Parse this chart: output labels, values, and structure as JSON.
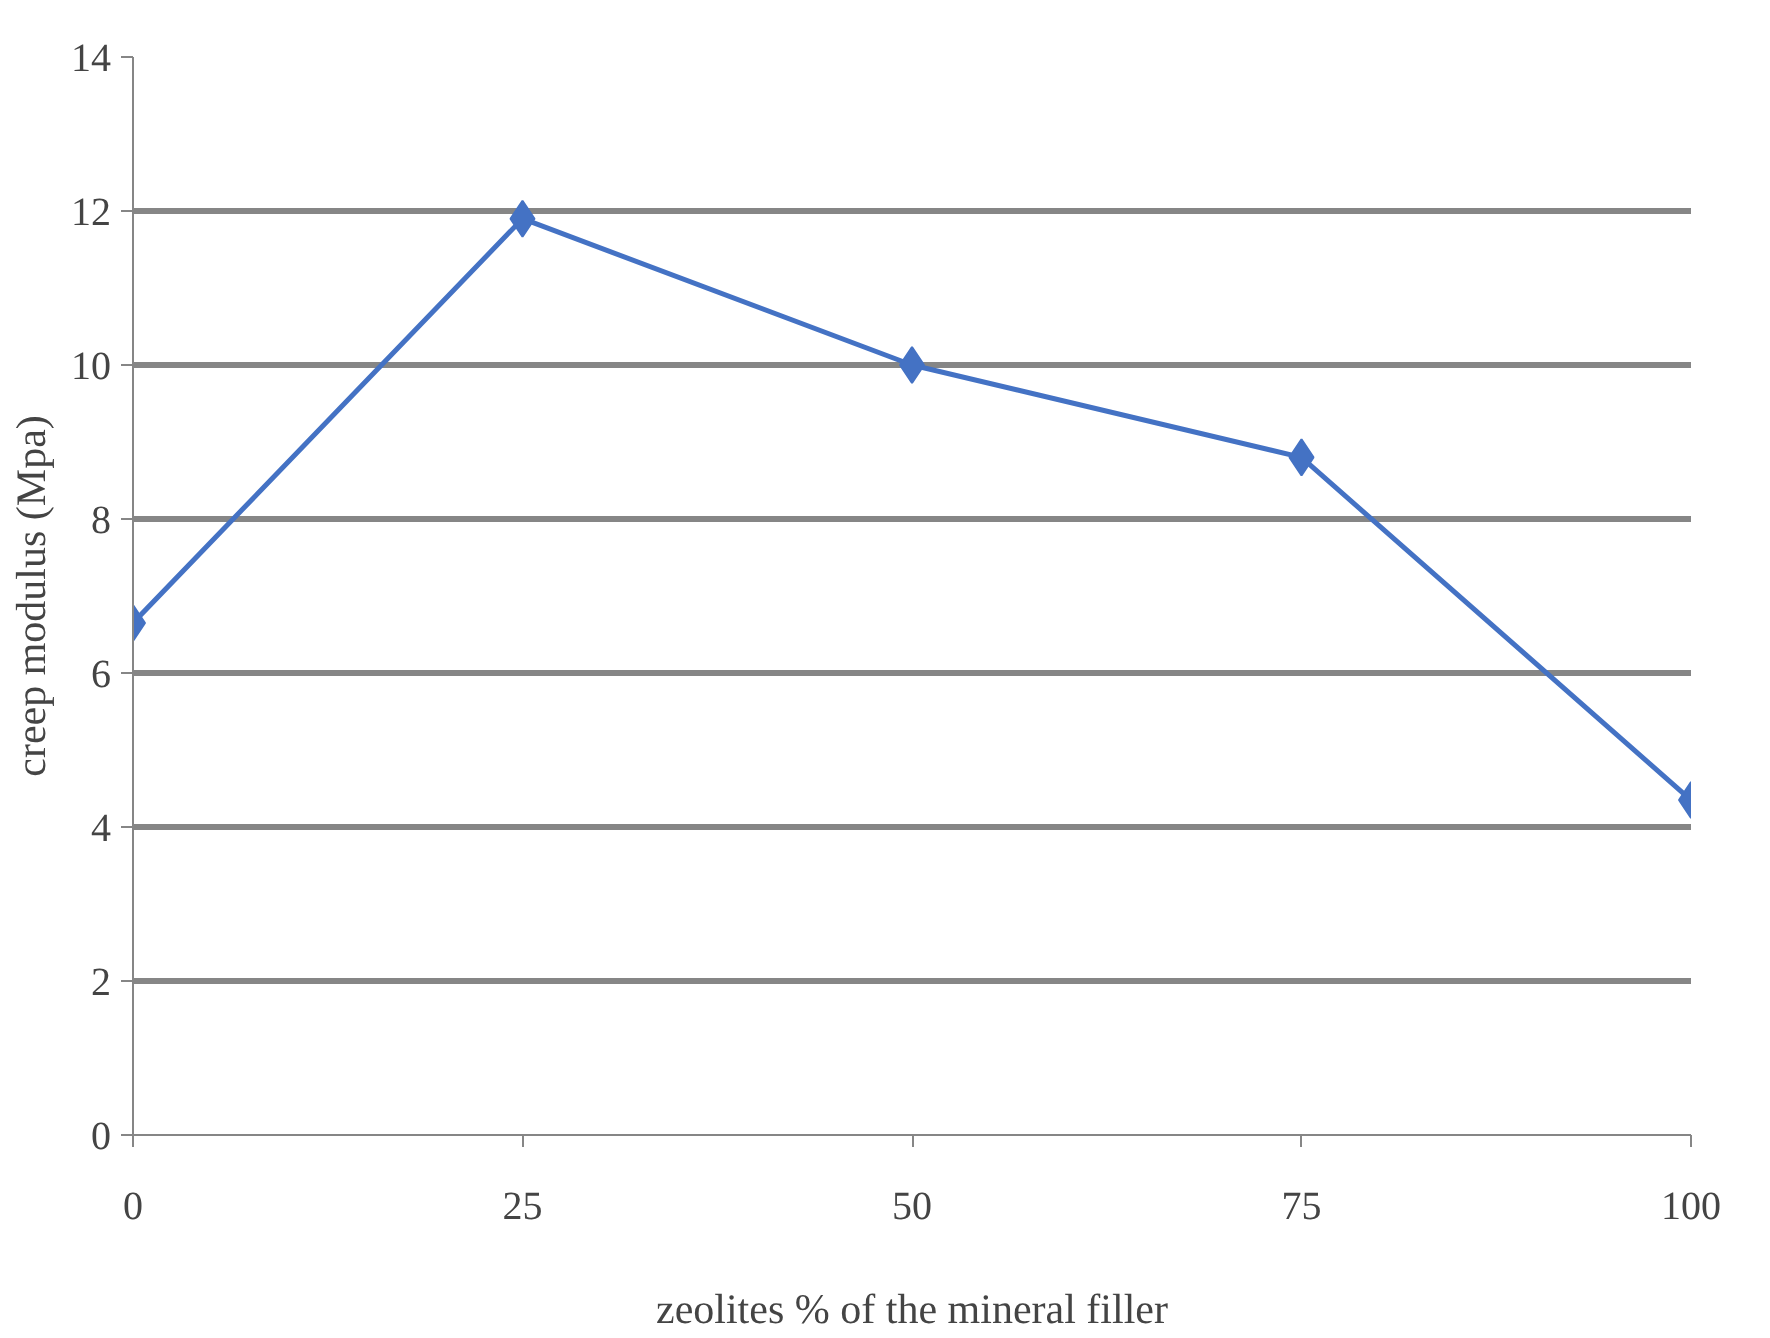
{
  "chart_data": {
    "type": "line",
    "xlabel": "zeolites % of the mineral filler",
    "ylabel": "creep modulus (Mpa)",
    "categories": [
      "0",
      "25",
      "50",
      "75",
      "100"
    ],
    "series": [
      {
        "color": "#4472c4",
        "values": [
          6.65,
          11.9,
          10.0,
          8.8,
          4.35
        ]
      }
    ],
    "ylim": [
      0,
      14
    ],
    "yticks": [
      0,
      2,
      4,
      6,
      8,
      10,
      12,
      14
    ],
    "grid": "y",
    "marker": "diamond",
    "line_style": "solid"
  }
}
